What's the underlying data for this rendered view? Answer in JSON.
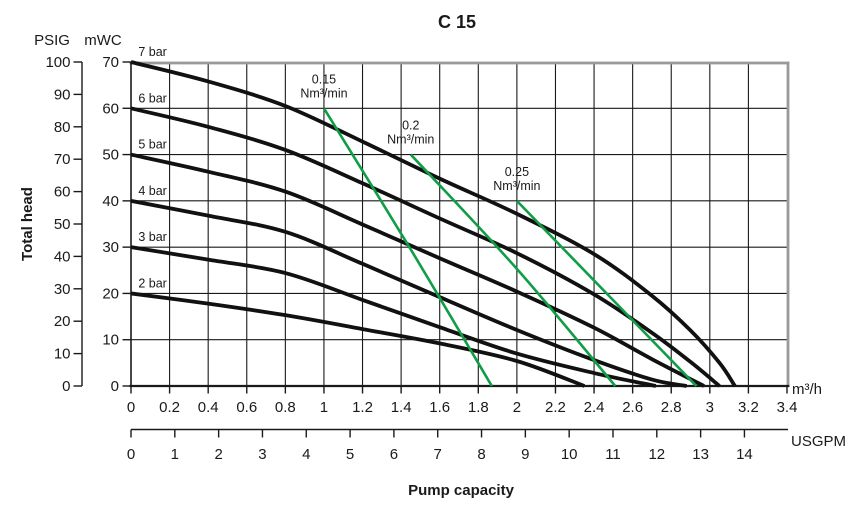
{
  "title": "C 15",
  "axes": {
    "y_title": "Total head",
    "x_title": "Pump capacity",
    "psig": {
      "label": "PSIG",
      "min": 0,
      "max": 100,
      "step": 10,
      "ticks": [
        0,
        10,
        20,
        30,
        40,
        50,
        60,
        70,
        80,
        90,
        100
      ]
    },
    "mwc": {
      "label": "mWC",
      "min": 0,
      "max": 70,
      "step": 10,
      "ticks": [
        0,
        10,
        20,
        30,
        40,
        50,
        60,
        70
      ]
    },
    "m3h": {
      "label": "m³/h",
      "min": 0,
      "max": 3.4,
      "step": 0.2,
      "tick_labels": [
        "0",
        "0.2",
        "0.4",
        "0.6",
        "0.8",
        "1",
        "1.2",
        "1.4",
        "1.6",
        "1.8",
        "2",
        "2.2",
        "2.4",
        "2.6",
        "2.8",
        "3",
        "3.2",
        "3.4"
      ]
    },
    "usgpm": {
      "label": "USGPM",
      "min": 0,
      "max": 14,
      "step": 1,
      "ticks": [
        0,
        1,
        2,
        3,
        4,
        5,
        6,
        7,
        8,
        9,
        10,
        11,
        12,
        13,
        14
      ]
    }
  },
  "colors": {
    "curve_black": "#111111",
    "air_green": "#0f9e46",
    "frame_gray": "#999999",
    "grid": "#1a1a1a",
    "text": "#1a1a1a"
  },
  "chart_data": {
    "type": "line",
    "title": "C 15",
    "xlabel": "Pump capacity",
    "ylabel": "Total head",
    "x_units": [
      "m³/h",
      "USGPM"
    ],
    "y_units": [
      "mWC",
      "PSIG"
    ],
    "xlim_m3h": [
      0,
      3.4
    ],
    "ylim_mwc": [
      0,
      70
    ],
    "usgpm_per_m3h_factor": 0.2271,
    "grid": true,
    "series": [
      {
        "name": "7 bar",
        "kind": "pressure",
        "color": "#111111",
        "label": "7 bar",
        "points": [
          [
            0,
            70
          ],
          [
            0.4,
            65.8
          ],
          [
            0.8,
            60.5
          ],
          [
            1.2,
            52.8
          ],
          [
            1.6,
            44.8
          ],
          [
            2.0,
            37.2
          ],
          [
            2.4,
            28.5
          ],
          [
            2.7,
            19.5
          ],
          [
            2.9,
            12
          ],
          [
            3.05,
            5
          ],
          [
            3.13,
            0
          ]
        ]
      },
      {
        "name": "6 bar",
        "kind": "pressure",
        "color": "#111111",
        "label": "6 bar",
        "points": [
          [
            0,
            60
          ],
          [
            0.4,
            56
          ],
          [
            0.8,
            51
          ],
          [
            1.2,
            43.8
          ],
          [
            1.6,
            36.2
          ],
          [
            2.0,
            28.7
          ],
          [
            2.4,
            19.8
          ],
          [
            2.7,
            11.5
          ],
          [
            2.9,
            5.2
          ],
          [
            3.05,
            0
          ]
        ]
      },
      {
        "name": "5 bar",
        "kind": "pressure",
        "color": "#111111",
        "label": "5 bar",
        "points": [
          [
            0,
            50
          ],
          [
            0.4,
            46.3
          ],
          [
            0.8,
            42
          ],
          [
            1.2,
            34.9
          ],
          [
            1.6,
            27.6
          ],
          [
            2.0,
            20.4
          ],
          [
            2.4,
            12.6
          ],
          [
            2.7,
            5.8
          ],
          [
            2.97,
            0
          ]
        ]
      },
      {
        "name": "4 bar",
        "kind": "pressure",
        "color": "#111111",
        "label": "4 bar",
        "points": [
          [
            0,
            40
          ],
          [
            0.4,
            36.8
          ],
          [
            0.8,
            33.3
          ],
          [
            1.2,
            26.4
          ],
          [
            1.6,
            19.2
          ],
          [
            2.0,
            12.1
          ],
          [
            2.4,
            5.6
          ],
          [
            2.7,
            1.4
          ],
          [
            2.88,
            0
          ]
        ]
      },
      {
        "name": "3 bar",
        "kind": "pressure",
        "color": "#111111",
        "label": "3 bar",
        "points": [
          [
            0,
            30
          ],
          [
            0.4,
            27.3
          ],
          [
            0.8,
            24.4
          ],
          [
            1.2,
            18.6
          ],
          [
            1.6,
            12.7
          ],
          [
            2.0,
            7.0
          ],
          [
            2.4,
            2.8
          ],
          [
            2.72,
            0
          ]
        ]
      },
      {
        "name": "2 bar",
        "kind": "pressure",
        "color": "#111111",
        "label": "2 bar",
        "points": [
          [
            0,
            20
          ],
          [
            0.4,
            17.8
          ],
          [
            0.8,
            15.3
          ],
          [
            1.2,
            12.3
          ],
          [
            1.6,
            9.2
          ],
          [
            2.0,
            5.4
          ],
          [
            2.35,
            0
          ]
        ]
      },
      {
        "name": "0.15 Nm³/min",
        "kind": "air-consumption",
        "color": "#0f9e46",
        "label_lines": [
          "0.15",
          "Nm³/min"
        ],
        "points": [
          [
            1.0,
            60
          ],
          [
            1.45,
            29.5
          ],
          [
            1.87,
            0
          ]
        ]
      },
      {
        "name": "0.2 Nm³/min",
        "kind": "air-consumption",
        "color": "#0f9e46",
        "label_lines": [
          "0.2",
          "Nm³/min"
        ],
        "points": [
          [
            1.45,
            50
          ],
          [
            2.0,
            25.3
          ],
          [
            2.51,
            0
          ]
        ]
      },
      {
        "name": "0.25 Nm³/min",
        "kind": "air-consumption",
        "color": "#0f9e46",
        "label_lines": [
          "0.25",
          "Nm³/min"
        ],
        "points": [
          [
            2.0,
            40
          ],
          [
            2.5,
            18.5
          ],
          [
            2.93,
            0
          ]
        ]
      }
    ]
  }
}
